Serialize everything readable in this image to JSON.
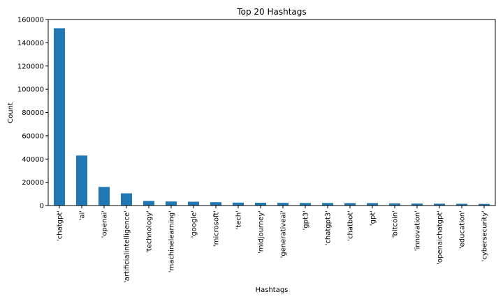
{
  "chart_data": {
    "type": "bar",
    "title": "Top 20 Hashtags",
    "xlabel": "Hashtags",
    "ylabel": "Count",
    "ylim": [
      0,
      160000
    ],
    "yticks": [
      0,
      20000,
      40000,
      60000,
      80000,
      100000,
      120000,
      140000,
      160000
    ],
    "grid": false,
    "legend": "none",
    "bar_color": "#1f77b4",
    "categories": [
      "'chatgpt'",
      "'ai'",
      "'openai'",
      "'artificialintelligence'",
      "'technology'",
      "'machinelearning'",
      "'google'",
      "'microsoft'",
      "'tech'",
      "'midjourney'",
      "'generativeai'",
      "'gpt3'",
      "'chatgpt3'",
      "'chatbot'",
      "'gpt'",
      "'bitcoin'",
      "'innovation'",
      "'openaichatgpt'",
      "'education'",
      "'cybersecurity'"
    ],
    "values": [
      152500,
      43000,
      16000,
      10500,
      4000,
      3500,
      3300,
      2900,
      2500,
      2400,
      2300,
      2200,
      2200,
      2100,
      2100,
      1800,
      1700,
      1600,
      1500,
      1400
    ]
  }
}
